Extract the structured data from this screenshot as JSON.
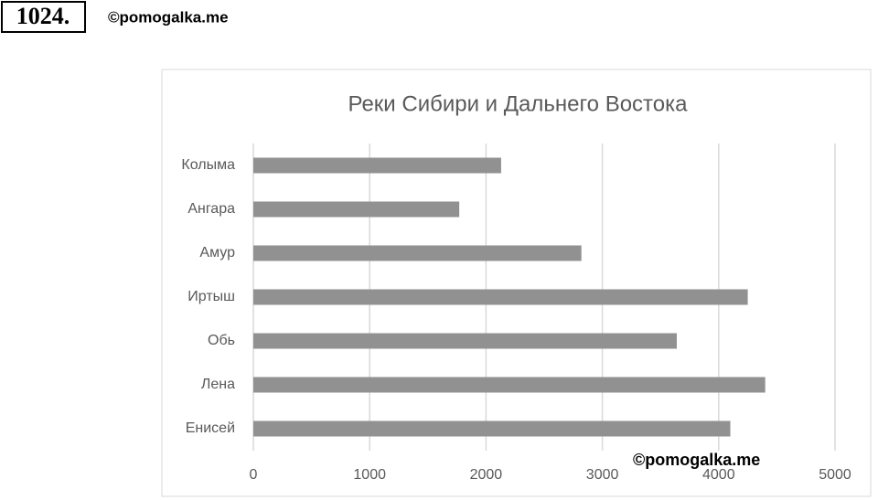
{
  "header": {
    "number": "1024.",
    "source": "©pomogalka.me"
  },
  "chart_data": {
    "type": "bar",
    "orientation": "horizontal",
    "title": "Реки Сибири и Дальнего Востока",
    "annotation": "©pomogalka.me",
    "categories": [
      "Колыма",
      "Ангара",
      "Амур",
      "Иртыш",
      "Обь",
      "Лена",
      "Енисей"
    ],
    "values": [
      2130,
      1770,
      2820,
      4250,
      3640,
      4400,
      4100
    ],
    "color": "#919191",
    "xlim": [
      0,
      5000
    ],
    "xticks": [
      0,
      1000,
      2000,
      3000,
      4000,
      5000
    ],
    "grid": true
  }
}
